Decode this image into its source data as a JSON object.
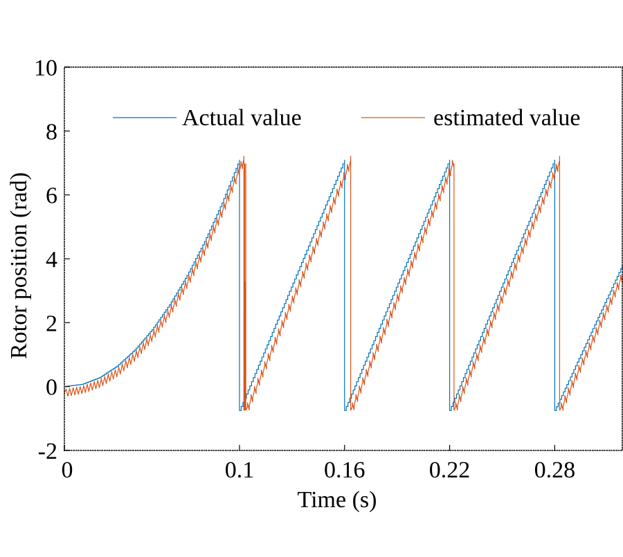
{
  "chart_data": {
    "type": "line",
    "title": "",
    "xlabel": "Time (s)",
    "ylabel": "Rotor position (rad)",
    "xlim": [
      0,
      0.3186
    ],
    "ylim": [
      -2,
      10
    ],
    "xticks": [
      0,
      0.1,
      0.16,
      0.22,
      0.28
    ],
    "xtick_labels": [
      "0",
      "0.1",
      "0.16",
      "0.22",
      "0.28"
    ],
    "yticks": [
      -2,
      0,
      2,
      4,
      6,
      8,
      10
    ],
    "ytick_labels": [
      "-2",
      "0",
      "2",
      "4",
      "6",
      "8",
      "10"
    ],
    "grid": false,
    "legend": {
      "placement": "top",
      "orientation": "horizontal"
    },
    "series": [
      {
        "name": "Actual value",
        "color": "#0072BD",
        "points": [
          [
            0,
            0
          ],
          [
            0.01,
            0.07
          ],
          [
            0.02,
            0.28
          ],
          [
            0.03,
            0.64
          ],
          [
            0.04,
            1.14
          ],
          [
            0.05,
            1.78
          ],
          [
            0.06,
            2.56
          ],
          [
            0.07,
            3.48
          ],
          [
            0.08,
            4.54
          ],
          [
            0.09,
            5.75
          ],
          [
            0.1,
            7.1
          ],
          [
            0.1,
            -0.75
          ],
          [
            0.16,
            7.1
          ],
          [
            0.16,
            -0.75
          ],
          [
            0.22,
            7.1
          ],
          [
            0.22,
            -0.75
          ],
          [
            0.28,
            7.1
          ],
          [
            0.28,
            -0.75
          ],
          [
            0.3186,
            3.8
          ]
        ]
      },
      {
        "name": "estimated value",
        "color": "#D95319",
        "points": [
          [
            0,
            -0.2
          ],
          [
            0.01,
            -0.1
          ],
          [
            0.02,
            0.1
          ],
          [
            0.03,
            0.45
          ],
          [
            0.04,
            0.95
          ],
          [
            0.05,
            1.58
          ],
          [
            0.06,
            2.35
          ],
          [
            0.07,
            3.27
          ],
          [
            0.08,
            4.32
          ],
          [
            0.09,
            5.52
          ],
          [
            0.1,
            6.85
          ],
          [
            0.1025,
            7.1
          ],
          [
            0.1025,
            -0.75
          ],
          [
            0.103,
            7.1
          ],
          [
            0.103,
            -0.75
          ],
          [
            0.1036,
            7.1
          ],
          [
            0.1036,
            -0.75
          ],
          [
            0.1635,
            7.1
          ],
          [
            0.1635,
            -0.75
          ],
          [
            0.2225,
            7.1
          ],
          [
            0.2225,
            -0.75
          ],
          [
            0.2828,
            7.1
          ],
          [
            0.2828,
            -0.75
          ],
          [
            0.3186,
            3.5
          ]
        ]
      }
    ]
  }
}
